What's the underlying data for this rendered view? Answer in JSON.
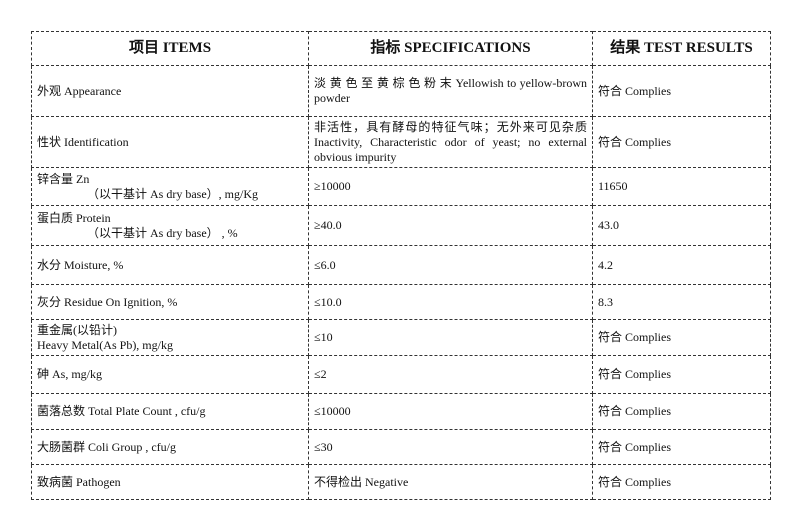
{
  "headers": {
    "items": "项目 ITEMS",
    "specs": "指标 SPECIFICATIONS",
    "results": "结果 TEST RESULTS"
  },
  "rows": [
    {
      "item": "外观 Appearance",
      "item2": "",
      "spec": "淡 黄 色 至 黄 棕 色 粉 末  Yellowish to yellow-brown powder",
      "result": "符合 Complies"
    },
    {
      "item": "性状 Identification",
      "item2": "",
      "spec": "非活性，具有酵母的特征气味；无外来可见杂质 Inactivity, Characteristic odor of yeast; no external obvious impurity",
      "result": "符合 Complies"
    },
    {
      "item": "锌含量 Zn",
      "item2": "（以干基计 As dry base）, mg/Kg",
      "spec": "≥10000",
      "result": "11650"
    },
    {
      "item": "蛋白质 Protein",
      "item2": "（以干基计 As dry base） , %",
      "spec": "≥40.0",
      "result": "43.0"
    },
    {
      "item": "水分 Moisture, %",
      "item2": "",
      "spec": "≤6.0",
      "result": "4.2"
    },
    {
      "item": "灰分 Residue On Ignition, %",
      "item2": "",
      "spec": "≤10.0",
      "result": "8.3"
    },
    {
      "item": "重金属(以铅计)",
      "item2": "Heavy Metal(As Pb), mg/kg",
      "spec": "≤10",
      "result": "符合 Complies"
    },
    {
      "item": "砷 As, mg/kg",
      "item2": "",
      "spec": "≤2",
      "result": "符合 Complies"
    },
    {
      "item": "菌落总数 Total Plate Count , cfu/g",
      "item2": "",
      "spec": "≤10000",
      "result": "符合 Complies"
    },
    {
      "item": "大肠菌群 Coli Group , cfu/g",
      "item2": "",
      "spec": "≤30",
      "result": "符合 Complies"
    },
    {
      "item": "致病菌 Pathogen",
      "item2": "",
      "spec": "不得检出 Negative",
      "result": "符合 Complies"
    }
  ]
}
